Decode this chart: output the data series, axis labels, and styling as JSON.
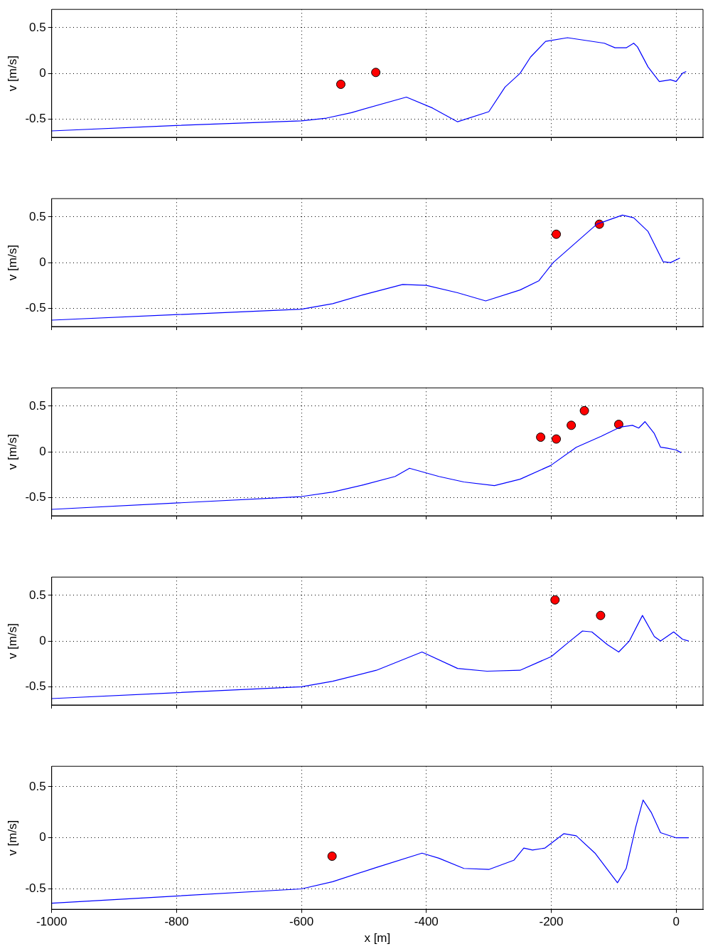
{
  "chart_data": [
    {
      "type": "line",
      "ylabel": "v [m/s]",
      "xlim": [
        -1000,
        43
      ],
      "ylim": [
        -0.7,
        0.7
      ],
      "xticks": [
        -1000,
        -800,
        -600,
        -400,
        -200,
        0
      ],
      "yticks": [
        -0.5,
        0,
        0.5
      ],
      "grid": true,
      "tick_labels": "y",
      "series": [
        {
          "color": "#0000ff",
          "marker": "none",
          "x": [
            -1000,
            -800,
            -600,
            -560,
            -520,
            -432,
            -390,
            -350,
            -300,
            -274,
            -250,
            -233,
            -209,
            -174,
            -115,
            -98,
            -80,
            -68,
            -62,
            -45,
            -27,
            -9,
            0,
            10,
            16
          ],
          "values": [
            -0.63,
            -0.57,
            -0.52,
            -0.49,
            -0.43,
            -0.26,
            -0.38,
            -0.53,
            -0.42,
            -0.15,
            0.0,
            0.18,
            0.35,
            0.39,
            0.33,
            0.28,
            0.28,
            0.33,
            0.29,
            0.07,
            -0.09,
            -0.07,
            -0.09,
            0.0,
            0.02
          ]
        },
        {
          "type": "scatter",
          "color": "#ff0000",
          "marker": "circle",
          "x": [
            -537,
            -481
          ],
          "values": [
            -0.12,
            0.01
          ]
        }
      ]
    },
    {
      "type": "line",
      "ylabel": "v [m/s]",
      "xlim": [
        -1000,
        43
      ],
      "ylim": [
        -0.7,
        0.7
      ],
      "xticks": [
        -1000,
        -800,
        -600,
        -400,
        -200,
        0
      ],
      "yticks": [
        -0.5,
        0,
        0.5
      ],
      "grid": true,
      "tick_labels": "y",
      "series": [
        {
          "color": "#0000ff",
          "marker": "none",
          "x": [
            -1000,
            -600,
            -550,
            -500,
            -438,
            -400,
            -350,
            -305,
            -250,
            -220,
            -197,
            -127,
            -86,
            -68,
            -45,
            -21,
            -9,
            6
          ],
          "values": [
            -0.63,
            -0.51,
            -0.45,
            -0.35,
            -0.24,
            -0.25,
            -0.33,
            -0.42,
            -0.3,
            -0.2,
            0.0,
            0.42,
            0.52,
            0.49,
            0.34,
            0.01,
            0.0,
            0.05
          ]
        },
        {
          "type": "scatter",
          "color": "#ff0000",
          "marker": "circle",
          "x": [
            -192,
            -123
          ],
          "values": [
            0.31,
            0.42
          ]
        }
      ]
    },
    {
      "type": "line",
      "ylabel": "v [m/s]",
      "xlim": [
        -1000,
        43
      ],
      "ylim": [
        -0.7,
        0.7
      ],
      "xticks": [
        -1000,
        -800,
        -600,
        -400,
        -200,
        0
      ],
      "yticks": [
        -0.5,
        0,
        0.5
      ],
      "grid": true,
      "tick_labels": "y",
      "series": [
        {
          "color": "#0000ff",
          "marker": "none",
          "x": [
            -1000,
            -600,
            -550,
            -500,
            -450,
            -427,
            -380,
            -340,
            -291,
            -250,
            -201,
            -160,
            -120,
            -90,
            -70,
            -60,
            -50,
            -35,
            -25,
            -15,
            0,
            8
          ],
          "values": [
            -0.63,
            -0.49,
            -0.44,
            -0.36,
            -0.27,
            -0.18,
            -0.27,
            -0.33,
            -0.37,
            -0.3,
            -0.15,
            0.05,
            0.17,
            0.27,
            0.29,
            0.26,
            0.33,
            0.2,
            0.05,
            0.04,
            0.02,
            -0.01
          ]
        },
        {
          "type": "scatter",
          "color": "#ff0000",
          "marker": "circle",
          "x": [
            -217,
            -192,
            -168,
            -147,
            -92
          ],
          "values": [
            0.16,
            0.14,
            0.29,
            0.45,
            0.3
          ]
        }
      ]
    },
    {
      "type": "line",
      "ylabel": "v [m/s]",
      "xlim": [
        -1000,
        43
      ],
      "ylim": [
        -0.7,
        0.7
      ],
      "xticks": [
        -1000,
        -800,
        -600,
        -400,
        -200,
        0
      ],
      "yticks": [
        -0.5,
        0,
        0.5
      ],
      "grid": true,
      "tick_labels": "y",
      "series": [
        {
          "color": "#0000ff",
          "marker": "none",
          "x": [
            -1000,
            -600,
            -550,
            -480,
            -407,
            -350,
            -303,
            -250,
            -200,
            -170,
            -150,
            -135,
            -110,
            -92,
            -75,
            -54,
            -35,
            -25,
            -4,
            10,
            20
          ],
          "values": [
            -0.63,
            -0.5,
            -0.44,
            -0.32,
            -0.12,
            -0.3,
            -0.33,
            -0.32,
            -0.17,
            0.0,
            0.11,
            0.1,
            -0.04,
            -0.12,
            0.0,
            0.28,
            0.05,
            0.0,
            0.1,
            0.02,
            0.0
          ]
        },
        {
          "type": "scatter",
          "color": "#ff0000",
          "marker": "circle",
          "x": [
            -194,
            -121
          ],
          "values": [
            0.45,
            0.28
          ]
        }
      ]
    },
    {
      "type": "line",
      "ylabel": "v [m/s]",
      "xlabel": "x [m]",
      "xlim": [
        -1000,
        43
      ],
      "ylim": [
        -0.7,
        0.7
      ],
      "xticks": [
        -1000,
        -800,
        -600,
        -400,
        -200,
        0
      ],
      "yticks": [
        -0.5,
        0,
        0.5
      ],
      "grid": true,
      "series": [
        {
          "color": "#0000ff",
          "marker": "none",
          "x": [
            -1000,
            -600,
            -550,
            -480,
            -407,
            -380,
            -340,
            -300,
            -260,
            -244,
            -230,
            -210,
            -180,
            -160,
            -130,
            -94,
            -80,
            -65,
            -53,
            -40,
            -25,
            0,
            20
          ],
          "values": [
            -0.64,
            -0.5,
            -0.43,
            -0.29,
            -0.15,
            -0.2,
            -0.3,
            -0.31,
            -0.22,
            -0.1,
            -0.12,
            -0.1,
            0.04,
            0.02,
            -0.15,
            -0.44,
            -0.3,
            0.1,
            0.37,
            0.25,
            0.05,
            0.0,
            0.0
          ]
        },
        {
          "type": "scatter",
          "color": "#ff0000",
          "marker": "circle",
          "x": [
            -551
          ],
          "values": [
            -0.18
          ]
        }
      ]
    }
  ]
}
